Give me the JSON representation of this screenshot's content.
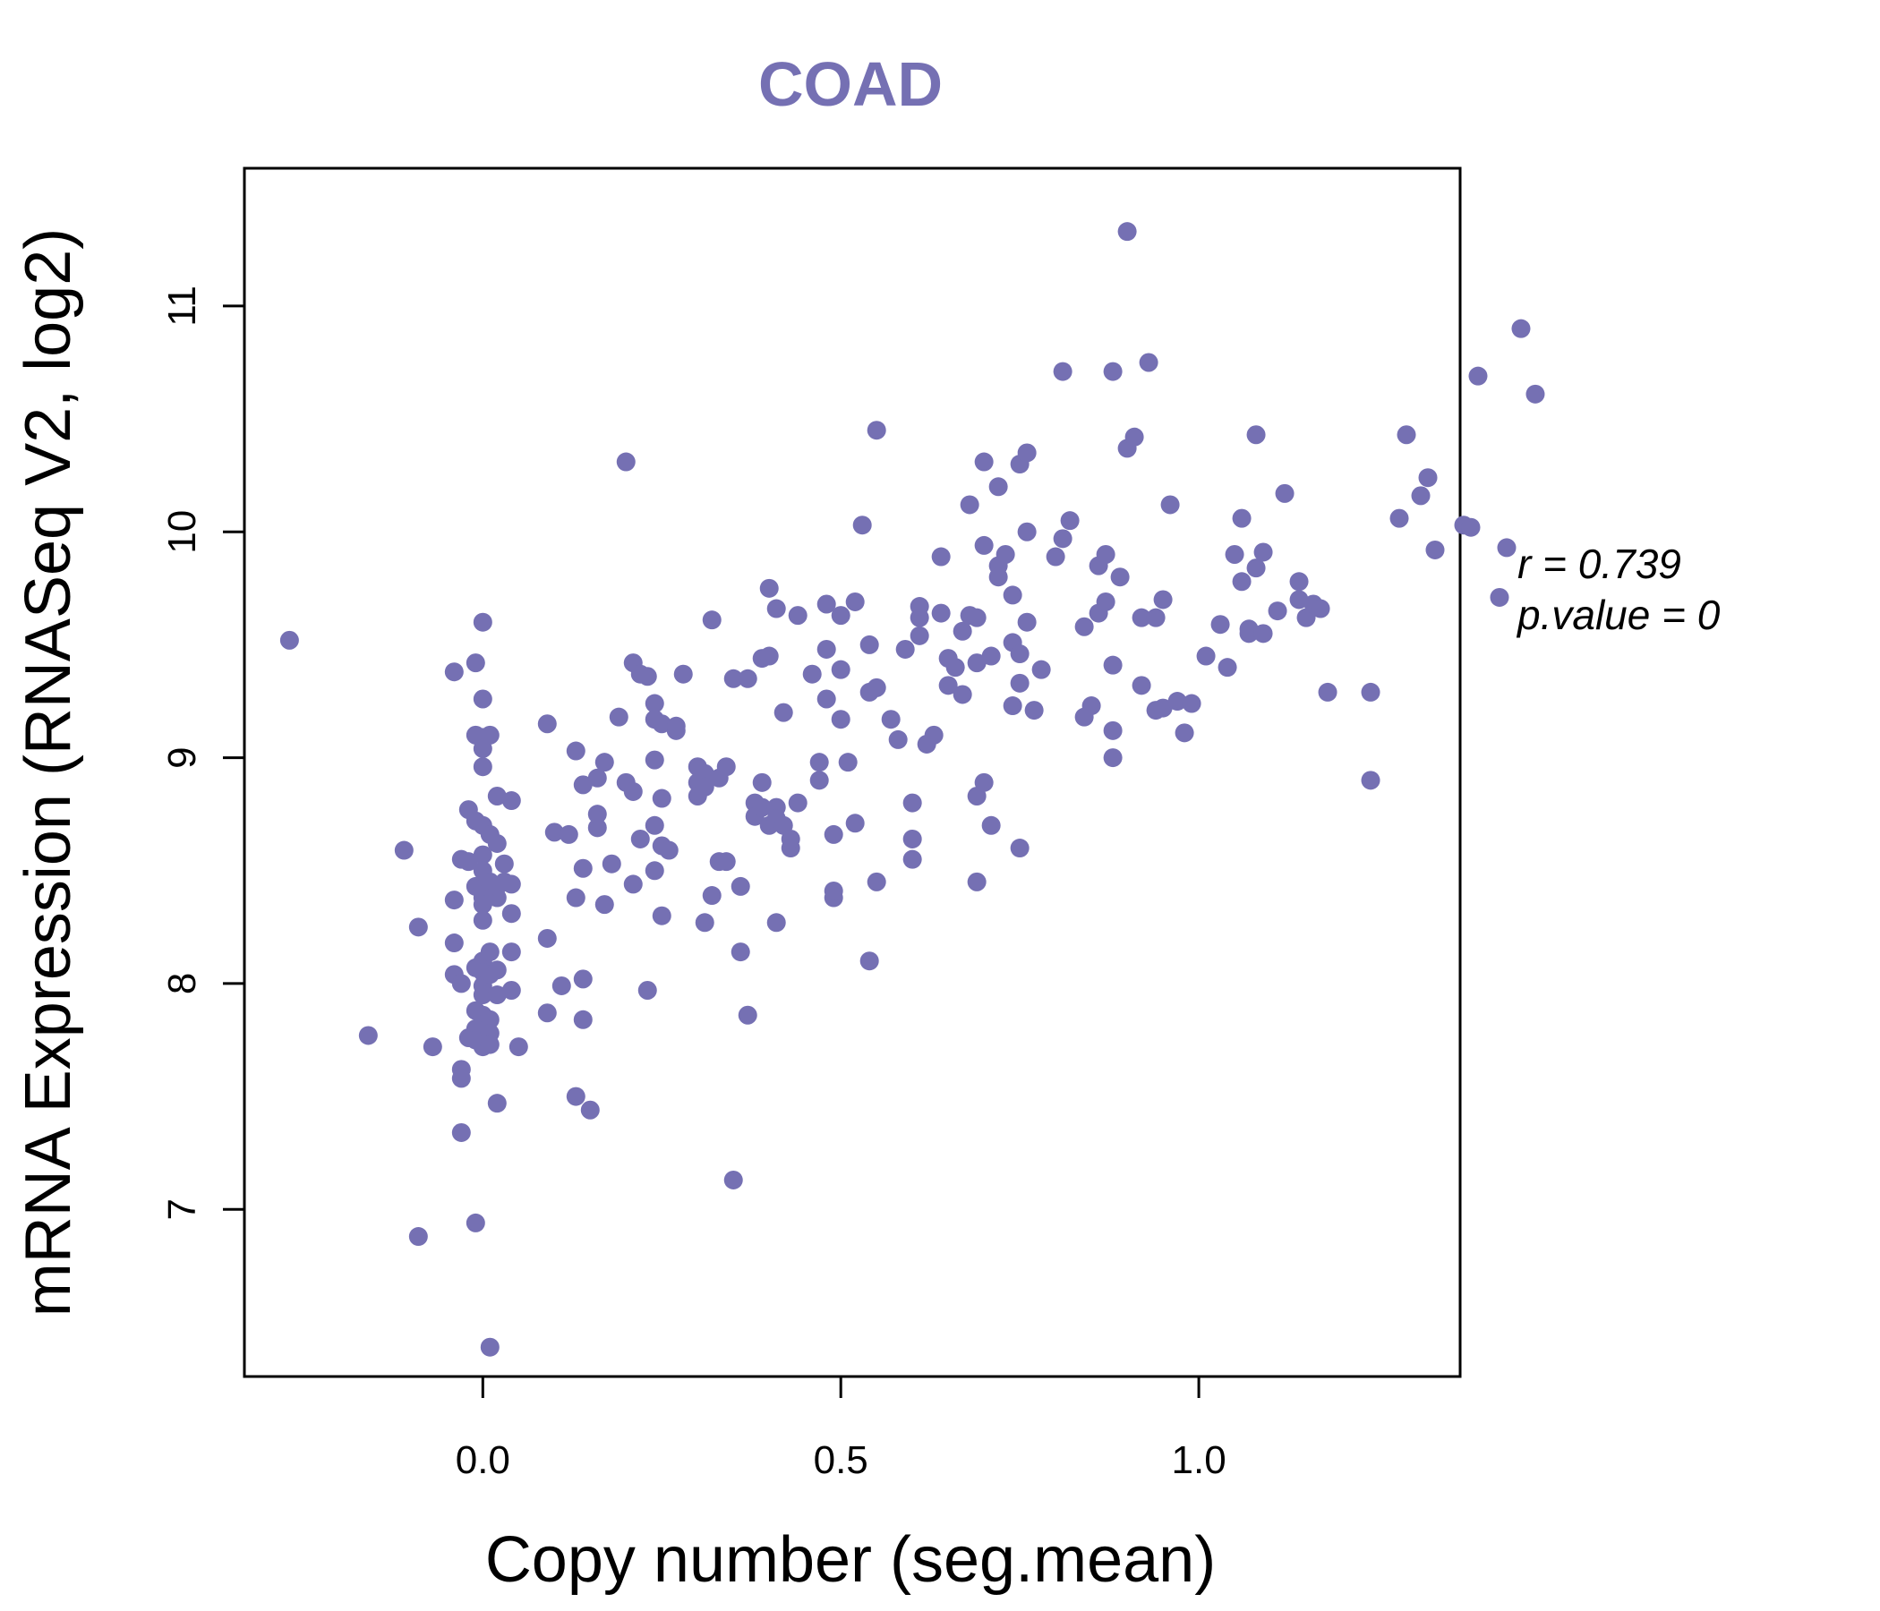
{
  "chart_data": {
    "type": "scatter",
    "title": "COAD",
    "xlabel": "Copy number (seg.mean)",
    "ylabel": "mRNA Expression (RNASeq V2, log2)",
    "xlim": [
      -0.333,
      1.365
    ],
    "ylim": [
      6.26,
      11.61
    ],
    "xticks": [
      0.0,
      0.5,
      1.0
    ],
    "xtick_labels": [
      "0.0",
      "0.5",
      "1.0"
    ],
    "yticks": [
      7,
      8,
      9,
      10,
      11
    ],
    "ytick_labels": [
      "7",
      "8",
      "9",
      "10",
      "11"
    ],
    "stats": {
      "r_label": "r = 0.739",
      "p_label": "p.value = 0"
    },
    "point_color": "#7570b3",
    "title_color": "#7570b3",
    "points": [
      [
        -0.27,
        9.52
      ],
      [
        -0.16,
        7.77
      ],
      [
        -0.11,
        8.59
      ],
      [
        -0.09,
        8.25
      ],
      [
        -0.09,
        6.88
      ],
      [
        -0.07,
        7.72
      ],
      [
        -0.04,
        9.38
      ],
      [
        -0.04,
        8.37
      ],
      [
        -0.04,
        8.18
      ],
      [
        -0.04,
        8.04
      ],
      [
        -0.03,
        8.0
      ],
      [
        -0.03,
        7.34
      ],
      [
        -0.03,
        7.62
      ],
      [
        -0.03,
        7.58
      ],
      [
        -0.03,
        8.55
      ],
      [
        -0.02,
        8.77
      ],
      [
        -0.02,
        8.54
      ],
      [
        -0.02,
        7.76
      ],
      [
        -0.01,
        9.1
      ],
      [
        -0.01,
        8.72
      ],
      [
        -0.01,
        8.43
      ],
      [
        -0.01,
        7.8
      ],
      [
        -0.01,
        7.75
      ],
      [
        -0.01,
        7.88
      ],
      [
        -0.01,
        9.42
      ],
      [
        -0.01,
        8.07
      ],
      [
        -0.01,
        6.94
      ],
      [
        0.0,
        9.6
      ],
      [
        0.0,
        9.26
      ],
      [
        0.0,
        9.09
      ],
      [
        0.0,
        9.04
      ],
      [
        0.0,
        8.96
      ],
      [
        0.0,
        8.7
      ],
      [
        0.0,
        8.57
      ],
      [
        0.0,
        8.5
      ],
      [
        0.0,
        8.44
      ],
      [
        0.0,
        8.42
      ],
      [
        0.0,
        8.38
      ],
      [
        0.0,
        8.35
      ],
      [
        0.0,
        8.28
      ],
      [
        0.0,
        8.1
      ],
      [
        0.0,
        8.05
      ],
      [
        0.0,
        7.99
      ],
      [
        0.0,
        7.95
      ],
      [
        0.0,
        7.86
      ],
      [
        0.0,
        7.82
      ],
      [
        0.0,
        7.72
      ],
      [
        0.01,
        8.66
      ],
      [
        0.01,
        8.45
      ],
      [
        0.01,
        8.14
      ],
      [
        0.01,
        7.84
      ],
      [
        0.01,
        7.78
      ],
      [
        0.01,
        7.73
      ],
      [
        0.01,
        6.39
      ],
      [
        0.01,
        8.04
      ],
      [
        0.01,
        9.1
      ],
      [
        0.02,
        8.62
      ],
      [
        0.02,
        8.38
      ],
      [
        0.02,
        8.43
      ],
      [
        0.02,
        8.06
      ],
      [
        0.02,
        7.95
      ],
      [
        0.02,
        7.47
      ],
      [
        0.02,
        8.83
      ],
      [
        0.03,
        8.53
      ],
      [
        0.03,
        8.45
      ],
      [
        0.04,
        8.14
      ],
      [
        0.04,
        7.97
      ],
      [
        0.04,
        8.81
      ],
      [
        0.04,
        8.44
      ],
      [
        0.04,
        8.31
      ],
      [
        0.05,
        7.72
      ],
      [
        0.09,
        8.2
      ],
      [
        0.09,
        7.87
      ],
      [
        0.09,
        9.15
      ],
      [
        0.1,
        8.67
      ],
      [
        0.11,
        7.99
      ],
      [
        0.12,
        8.66
      ],
      [
        0.13,
        8.38
      ],
      [
        0.13,
        7.5
      ],
      [
        0.13,
        9.03
      ],
      [
        0.14,
        8.88
      ],
      [
        0.14,
        8.02
      ],
      [
        0.14,
        7.84
      ],
      [
        0.14,
        8.51
      ],
      [
        0.15,
        7.44
      ],
      [
        0.16,
        8.69
      ],
      [
        0.16,
        8.75
      ],
      [
        0.16,
        8.91
      ],
      [
        0.17,
        8.98
      ],
      [
        0.17,
        8.35
      ],
      [
        0.18,
        8.53
      ],
      [
        0.19,
        9.18
      ],
      [
        0.2,
        10.31
      ],
      [
        0.2,
        8.89
      ],
      [
        0.21,
        9.42
      ],
      [
        0.21,
        8.85
      ],
      [
        0.21,
        8.44
      ],
      [
        0.22,
        8.64
      ],
      [
        0.22,
        9.37
      ],
      [
        0.23,
        9.36
      ],
      [
        0.23,
        7.97
      ],
      [
        0.24,
        9.24
      ],
      [
        0.24,
        9.17
      ],
      [
        0.24,
        8.99
      ],
      [
        0.24,
        8.7
      ],
      [
        0.24,
        8.5
      ],
      [
        0.25,
        9.15
      ],
      [
        0.25,
        8.82
      ],
      [
        0.25,
        8.61
      ],
      [
        0.25,
        8.3
      ],
      [
        0.26,
        8.59
      ],
      [
        0.27,
        9.12
      ],
      [
        0.27,
        9.14
      ],
      [
        0.28,
        9.37
      ],
      [
        0.3,
        8.96
      ],
      [
        0.3,
        8.89
      ],
      [
        0.3,
        8.83
      ],
      [
        0.31,
        8.93
      ],
      [
        0.31,
        8.87
      ],
      [
        0.31,
        8.27
      ],
      [
        0.32,
        9.61
      ],
      [
        0.32,
        8.39
      ],
      [
        0.33,
        8.54
      ],
      [
        0.33,
        8.91
      ],
      [
        0.34,
        8.54
      ],
      [
        0.34,
        8.96
      ],
      [
        0.35,
        9.35
      ],
      [
        0.35,
        7.13
      ],
      [
        0.36,
        8.43
      ],
      [
        0.36,
        8.14
      ],
      [
        0.37,
        9.35
      ],
      [
        0.37,
        7.86
      ],
      [
        0.38,
        8.8
      ],
      [
        0.38,
        8.74
      ],
      [
        0.39,
        9.44
      ],
      [
        0.39,
        8.89
      ],
      [
        0.39,
        8.78
      ],
      [
        0.4,
        9.45
      ],
      [
        0.4,
        9.75
      ],
      [
        0.4,
        8.7
      ],
      [
        0.41,
        9.66
      ],
      [
        0.41,
        8.78
      ],
      [
        0.41,
        8.73
      ],
      [
        0.41,
        8.27
      ],
      [
        0.42,
        9.2
      ],
      [
        0.42,
        8.7
      ],
      [
        0.43,
        8.6
      ],
      [
        0.43,
        8.64
      ],
      [
        0.44,
        8.8
      ],
      [
        0.44,
        9.63
      ],
      [
        0.46,
        9.37
      ],
      [
        0.47,
        8.98
      ],
      [
        0.47,
        8.9
      ],
      [
        0.48,
        9.68
      ],
      [
        0.48,
        9.26
      ],
      [
        0.48,
        9.48
      ],
      [
        0.49,
        8.38
      ],
      [
        0.49,
        8.41
      ],
      [
        0.49,
        8.66
      ],
      [
        0.5,
        9.63
      ],
      [
        0.5,
        9.17
      ],
      [
        0.5,
        9.39
      ],
      [
        0.51,
        8.98
      ],
      [
        0.52,
        9.69
      ],
      [
        0.52,
        8.71
      ],
      [
        0.53,
        10.03
      ],
      [
        0.54,
        9.5
      ],
      [
        0.54,
        9.29
      ],
      [
        0.54,
        8.1
      ],
      [
        0.55,
        9.31
      ],
      [
        0.55,
        8.45
      ],
      [
        0.55,
        10.45
      ],
      [
        0.57,
        9.17
      ],
      [
        0.58,
        9.08
      ],
      [
        0.59,
        9.48
      ],
      [
        0.6,
        8.8
      ],
      [
        0.6,
        8.64
      ],
      [
        0.6,
        8.55
      ],
      [
        0.61,
        9.54
      ],
      [
        0.61,
        9.62
      ],
      [
        0.61,
        9.67
      ],
      [
        0.62,
        9.06
      ],
      [
        0.63,
        9.1
      ],
      [
        0.64,
        9.89
      ],
      [
        0.64,
        9.64
      ],
      [
        0.65,
        9.44
      ],
      [
        0.65,
        9.32
      ],
      [
        0.66,
        9.4
      ],
      [
        0.67,
        9.56
      ],
      [
        0.67,
        9.28
      ],
      [
        0.68,
        10.12
      ],
      [
        0.68,
        9.63
      ],
      [
        0.69,
        8.83
      ],
      [
        0.69,
        8.45
      ],
      [
        0.69,
        9.62
      ],
      [
        0.69,
        9.42
      ],
      [
        0.7,
        10.31
      ],
      [
        0.7,
        9.94
      ],
      [
        0.7,
        8.89
      ],
      [
        0.71,
        8.7
      ],
      [
        0.71,
        9.45
      ],
      [
        0.72,
        10.2
      ],
      [
        0.72,
        9.85
      ],
      [
        0.72,
        9.8
      ],
      [
        0.73,
        9.9
      ],
      [
        0.74,
        9.72
      ],
      [
        0.74,
        9.51
      ],
      [
        0.74,
        9.23
      ],
      [
        0.75,
        10.3
      ],
      [
        0.75,
        9.46
      ],
      [
        0.75,
        9.33
      ],
      [
        0.75,
        8.6
      ],
      [
        0.76,
        10.35
      ],
      [
        0.76,
        10.0
      ],
      [
        0.76,
        9.6
      ],
      [
        0.77,
        9.21
      ],
      [
        0.78,
        9.39
      ],
      [
        0.8,
        9.89
      ],
      [
        0.81,
        9.97
      ],
      [
        0.81,
        10.71
      ],
      [
        0.82,
        10.05
      ],
      [
        0.84,
        9.58
      ],
      [
        0.84,
        9.18
      ],
      [
        0.85,
        9.23
      ],
      [
        0.86,
        9.85
      ],
      [
        0.86,
        9.64
      ],
      [
        0.87,
        9.9
      ],
      [
        0.87,
        9.69
      ],
      [
        0.88,
        10.71
      ],
      [
        0.88,
        9.41
      ],
      [
        0.88,
        9.12
      ],
      [
        0.88,
        9.0
      ],
      [
        0.89,
        9.8
      ],
      [
        0.9,
        11.33
      ],
      [
        0.9,
        10.37
      ],
      [
        0.91,
        10.42
      ],
      [
        0.92,
        9.62
      ],
      [
        0.92,
        9.32
      ],
      [
        0.93,
        10.75
      ],
      [
        0.94,
        9.62
      ],
      [
        0.94,
        9.21
      ],
      [
        0.95,
        9.7
      ],
      [
        0.95,
        9.22
      ],
      [
        0.96,
        10.12
      ],
      [
        0.97,
        9.25
      ],
      [
        0.98,
        9.11
      ],
      [
        0.99,
        9.24
      ],
      [
        1.01,
        9.45
      ],
      [
        1.03,
        9.59
      ],
      [
        1.04,
        9.4
      ],
      [
        1.05,
        9.9
      ],
      [
        1.06,
        10.06
      ],
      [
        1.06,
        9.78
      ],
      [
        1.07,
        9.55
      ],
      [
        1.07,
        9.57
      ],
      [
        1.08,
        10.43
      ],
      [
        1.08,
        9.84
      ],
      [
        1.09,
        9.91
      ],
      [
        1.09,
        9.55
      ],
      [
        1.11,
        9.65
      ],
      [
        1.12,
        10.17
      ],
      [
        1.14,
        9.78
      ],
      [
        1.14,
        9.7
      ],
      [
        1.15,
        9.62
      ],
      [
        1.16,
        9.68
      ],
      [
        1.17,
        9.66
      ],
      [
        1.18,
        9.29
      ],
      [
        1.24,
        9.29
      ],
      [
        1.24,
        8.9
      ],
      [
        1.28,
        10.06
      ],
      [
        1.29,
        10.43
      ],
      [
        1.31,
        10.16
      ],
      [
        1.32,
        10.24
      ],
      [
        1.33,
        9.92
      ],
      [
        1.37,
        10.03
      ],
      [
        1.38,
        10.02
      ],
      [
        1.39,
        10.69
      ],
      [
        1.42,
        9.71
      ],
      [
        1.43,
        9.93
      ],
      [
        1.45,
        10.9
      ],
      [
        1.47,
        10.61
      ]
    ]
  }
}
